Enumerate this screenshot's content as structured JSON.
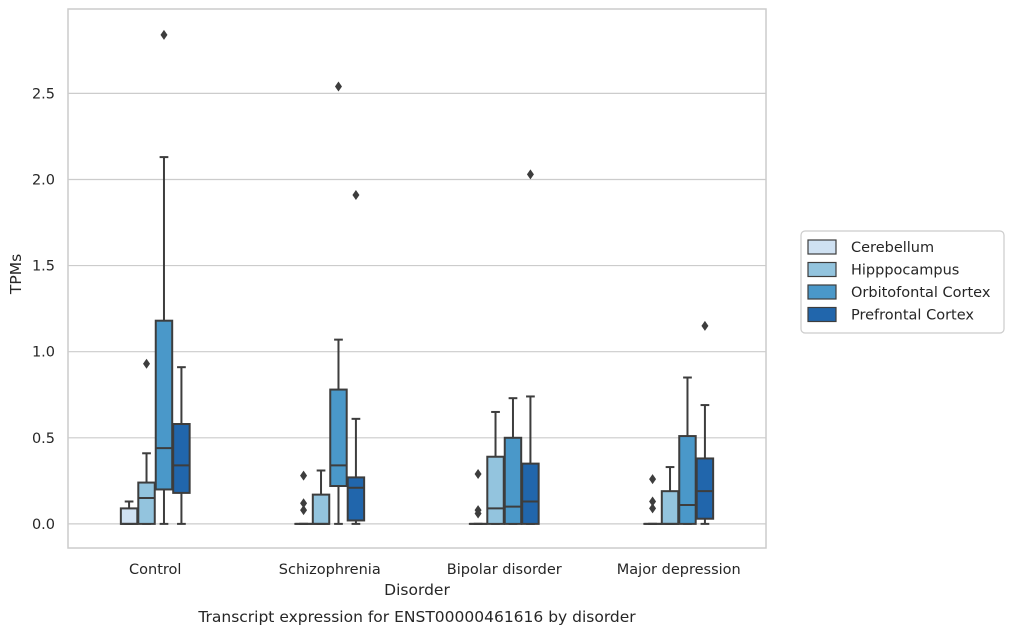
{
  "chart_data": {
    "type": "box",
    "caption": "Transcript expression for ENST00000461616 by disorder",
    "xlabel": "Disorder",
    "ylabel": "TPMs",
    "ylim": [
      -0.14,
      2.99
    ],
    "yticks": [
      0.0,
      0.5,
      1.0,
      1.5,
      2.0,
      2.5
    ],
    "ytick_labels": [
      "0.0",
      "0.5",
      "1.0",
      "1.5",
      "2.0",
      "2.5"
    ],
    "grid": "horizontal",
    "legend_position": "right",
    "categories": [
      "Control",
      "Schizophrenia",
      "Bipolar disorder",
      "Major depression"
    ],
    "series": [
      {
        "name": "Cerebellum",
        "color": "#cfe1f2",
        "boxes": [
          {
            "whislo": 0.0,
            "q1": 0.0,
            "med": 0.0,
            "q3": 0.09,
            "whishi": 0.13,
            "fliers": []
          },
          {
            "whislo": 0.0,
            "q1": 0.0,
            "med": 0.0,
            "q3": 0.0,
            "whishi": 0.0,
            "fliers": [
              0.08,
              0.12,
              0.28
            ]
          },
          {
            "whislo": 0.0,
            "q1": 0.0,
            "med": 0.0,
            "q3": 0.0,
            "whishi": 0.0,
            "fliers": [
              0.06,
              0.08,
              0.29
            ]
          },
          {
            "whislo": 0.0,
            "q1": 0.0,
            "med": 0.0,
            "q3": 0.0,
            "whishi": 0.0,
            "fliers": [
              0.09,
              0.13,
              0.26
            ]
          }
        ]
      },
      {
        "name": "Hipppocampus",
        "color": "#93c4de",
        "boxes": [
          {
            "whislo": 0.0,
            "q1": 0.0,
            "med": 0.15,
            "q3": 0.24,
            "whishi": 0.41,
            "fliers": [
              0.93
            ]
          },
          {
            "whislo": 0.0,
            "q1": 0.0,
            "med": 0.0,
            "q3": 0.17,
            "whishi": 0.31,
            "fliers": []
          },
          {
            "whislo": 0.0,
            "q1": 0.0,
            "med": 0.09,
            "q3": 0.39,
            "whishi": 0.65,
            "fliers": []
          },
          {
            "whislo": 0.0,
            "q1": 0.0,
            "med": 0.0,
            "q3": 0.19,
            "whishi": 0.33,
            "fliers": []
          }
        ]
      },
      {
        "name": "Orbitofontal Cortex",
        "color": "#4a98c9",
        "boxes": [
          {
            "whislo": 0.0,
            "q1": 0.2,
            "med": 0.44,
            "q3": 1.18,
            "whishi": 2.13,
            "fliers": [
              2.84
            ]
          },
          {
            "whislo": 0.0,
            "q1": 0.22,
            "med": 0.34,
            "q3": 0.78,
            "whishi": 1.07,
            "fliers": [
              2.54
            ]
          },
          {
            "whislo": 0.0,
            "q1": 0.0,
            "med": 0.1,
            "q3": 0.5,
            "whishi": 0.73,
            "fliers": []
          },
          {
            "whislo": 0.0,
            "q1": 0.0,
            "med": 0.11,
            "q3": 0.51,
            "whishi": 0.85,
            "fliers": []
          }
        ]
      },
      {
        "name": "Prefrontal Cortex",
        "color": "#2166ac",
        "boxes": [
          {
            "whislo": 0.0,
            "q1": 0.18,
            "med": 0.34,
            "q3": 0.58,
            "whishi": 0.91,
            "fliers": []
          },
          {
            "whislo": 0.0,
            "q1": 0.02,
            "med": 0.21,
            "q3": 0.27,
            "whishi": 0.61,
            "fliers": [
              1.91
            ]
          },
          {
            "whislo": 0.0,
            "q1": 0.0,
            "med": 0.13,
            "q3": 0.35,
            "whishi": 0.74,
            "fliers": [
              2.03
            ]
          },
          {
            "whislo": 0.0,
            "q1": 0.03,
            "med": 0.19,
            "q3": 0.38,
            "whishi": 0.69,
            "fliers": [
              1.15
            ]
          }
        ]
      }
    ],
    "line_color": "#3d3d3d",
    "grid_color": "#cccccc"
  }
}
